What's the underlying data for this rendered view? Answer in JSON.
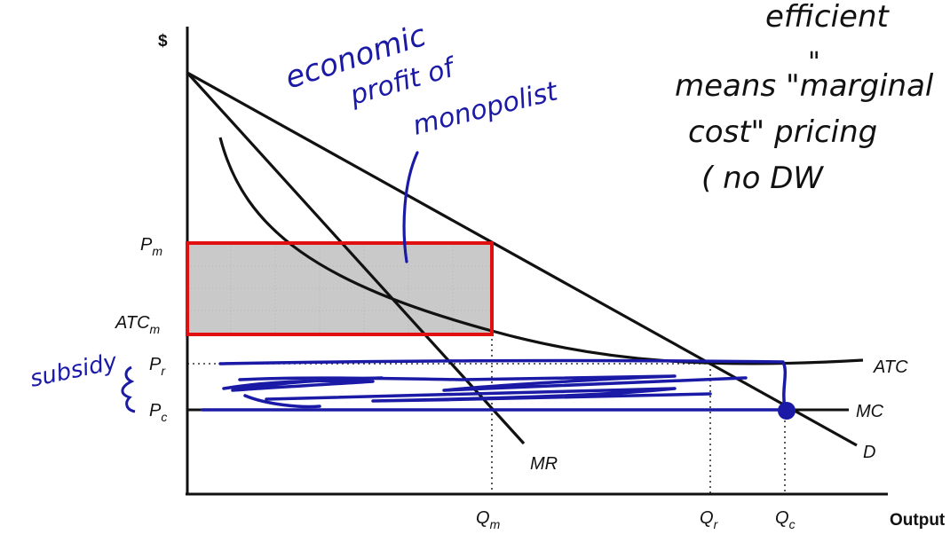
{
  "axes": {
    "y_label": "$",
    "x_label": "Output"
  },
  "price_labels": {
    "pm_base": "P",
    "pm_sub": "m",
    "atcm_base": "ATC",
    "atcm_sub": "m",
    "pr_base": "P",
    "pr_sub": "r",
    "pc_base": "P",
    "pc_sub": "c"
  },
  "quantity_labels": {
    "qm_base": "Q",
    "qm_sub": "m",
    "qr_base": "Q",
    "qr_sub": "r",
    "qc_base": "Q",
    "qc_sub": "c"
  },
  "curve_labels": {
    "atc": "ATC",
    "mc": "MC",
    "mr": "MR",
    "demand": "D"
  },
  "annotations": {
    "profit_line1": "economic",
    "profit_line2": "profit of",
    "profit_line3": "monopolist",
    "subsidy": "subsidy",
    "note_line1": "efficient",
    "note_line2": "\"",
    "note_line3": "means \"marginal",
    "note_line4": "cost\" pricing",
    "note_line5": "( no DW"
  },
  "colors": {
    "profit_box_border": "#e01010",
    "profit_box_fill": "#c9c9c9",
    "pen_blue": "#1a1aa6",
    "curve": "#111111"
  }
}
